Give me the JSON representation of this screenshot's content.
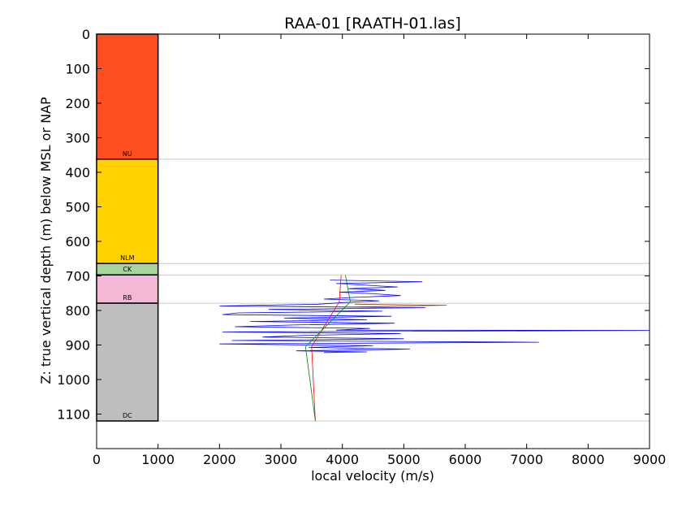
{
  "chart_data": {
    "type": "line",
    "title": "RAA-01 [RAATH-01.las]",
    "xlabel": "local velocity (m/s)",
    "ylabel": "Z: true vertical depth (m) below MSL or NAP",
    "xlim": [
      0,
      9000
    ],
    "ylim": [
      1200,
      0
    ],
    "y_inverted": true,
    "grid": false,
    "x_ticks": [
      0,
      1000,
      2000,
      3000,
      4000,
      5000,
      6000,
      7000,
      8000,
      9000
    ],
    "y_ticks": [
      0,
      100,
      200,
      300,
      400,
      500,
      600,
      700,
      800,
      900,
      1000,
      1100
    ],
    "formations": [
      {
        "label": "NU",
        "top": 0,
        "base": 362,
        "color": "#ff4f21"
      },
      {
        "label": "NLM",
        "top": 362,
        "base": 664,
        "color": "#ffd200"
      },
      {
        "label": "CK",
        "top": 664,
        "base": 697,
        "color": "#a6d69c"
      },
      {
        "label": "RB",
        "top": 697,
        "base": 779,
        "color": "#f4b8d6"
      },
      {
        "label": "DC",
        "top": 779,
        "base": 1120,
        "color": "#bebebe"
      }
    ],
    "formation_x_range": [
      0,
      1000
    ],
    "horizon_depths": [
      362,
      664,
      697,
      779,
      1120
    ],
    "series": [
      {
        "color": "#0000ff",
        "points": [
          [
            3800,
            712
          ],
          [
            5300,
            717
          ],
          [
            3900,
            722
          ],
          [
            4400,
            727
          ],
          [
            4900,
            732
          ],
          [
            4100,
            737
          ],
          [
            4700,
            742
          ],
          [
            3950,
            747
          ],
          [
            4550,
            752
          ],
          [
            4950,
            757
          ],
          [
            4200,
            762
          ],
          [
            3700,
            767
          ],
          [
            4600,
            772
          ],
          [
            4050,
            777
          ],
          [
            3600,
            782
          ],
          [
            2000,
            787
          ],
          [
            5350,
            792
          ],
          [
            2800,
            797
          ],
          [
            4650,
            802
          ],
          [
            2300,
            807
          ],
          [
            2050,
            812
          ],
          [
            4800,
            817
          ],
          [
            3050,
            822
          ],
          [
            4400,
            827
          ],
          [
            2500,
            832
          ],
          [
            4850,
            837
          ],
          [
            3200,
            842
          ],
          [
            2250,
            847
          ],
          [
            4450,
            852
          ],
          [
            3900,
            857
          ],
          [
            9000,
            858
          ],
          [
            2050,
            862
          ],
          [
            4950,
            867
          ],
          [
            3400,
            872
          ],
          [
            2700,
            877
          ],
          [
            5000,
            882
          ],
          [
            2200,
            887
          ],
          [
            7200,
            892
          ],
          [
            2000,
            897
          ],
          [
            4500,
            902
          ],
          [
            3450,
            907
          ],
          [
            5100,
            912
          ],
          [
            3250,
            917
          ],
          [
            4400,
            920
          ],
          [
            3700,
            922
          ]
        ]
      },
      {
        "color": "#ff0000",
        "points": [
          [
            3980,
            698
          ],
          [
            3950,
            775
          ],
          [
            3500,
            905
          ],
          [
            3560,
            1120
          ]
        ]
      },
      {
        "color": "#008000",
        "points": [
          [
            4050,
            698
          ],
          [
            4130,
            775
          ],
          [
            3400,
            905
          ],
          [
            3560,
            1120
          ]
        ]
      },
      {
        "color": "#8b4513",
        "points": [
          [
            4200,
            782
          ],
          [
            5700,
            785
          ],
          [
            4100,
            790
          ]
        ]
      }
    ]
  }
}
